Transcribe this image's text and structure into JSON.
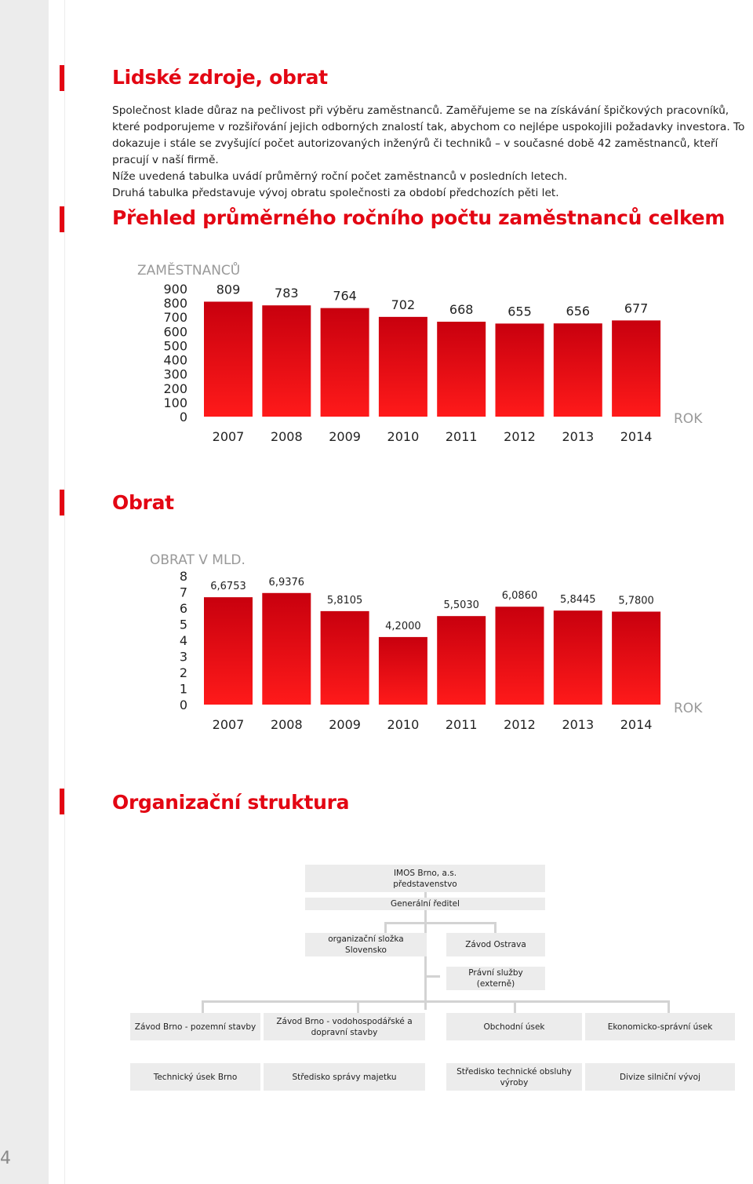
{
  "page_number": "4",
  "sections": {
    "hr_title": "Lidské zdroje, obrat",
    "employees_title": "Přehled průměrného ročního počtu zaměstnanců celkem",
    "turnover_title": "Obrat",
    "org_title": "Organizační struktura"
  },
  "intro": {
    "paragraph1": "Společnost klade důraz na pečlivost při výběru zaměstnanců. Zaměřujeme se na získávání špičkových pracovníků, které podporujeme v rozšiřování jejich odborných znalostí tak, abychom co nejlépe uspokojili požadavky investora. To dokazuje i stále se zvyšující počet autorizovaných inženýrů či techniků – v současné době 42 zaměstnanců, kteří pracují v naší firmě.",
    "paragraph2": "Níže uvedená tabulka uvádí průměrný roční počet zaměstnanců v posledních letech.",
    "paragraph3": "Druhá tabulka představuje vývoj obratu společnosti za období předchozích pěti let."
  },
  "colors": {
    "accent": "#e30613",
    "bar_top": "#c8000e",
    "bar_bottom": "#ff1a1a",
    "gray_box": "#ececec"
  },
  "chart_data": [
    {
      "type": "bar",
      "ylabel": "ZAMĚSTNANCŮ",
      "xlabel": "ROK",
      "categories": [
        "2007",
        "2008",
        "2009",
        "2010",
        "2011",
        "2012",
        "2013",
        "2014"
      ],
      "values": [
        809,
        783,
        764,
        702,
        668,
        655,
        656,
        677
      ],
      "value_labels": [
        "809",
        "783",
        "764",
        "702",
        "668",
        "655",
        "656",
        "677"
      ],
      "yticks": [
        "900",
        "800",
        "700",
        "600",
        "500",
        "400",
        "300",
        "200",
        "100",
        "0"
      ],
      "ylim": [
        0,
        900
      ],
      "grid": false,
      "legend": "none"
    },
    {
      "type": "bar",
      "ylabel": "OBRAT V MLD.",
      "xlabel": "ROK",
      "categories": [
        "2007",
        "2008",
        "2009",
        "2010",
        "2011",
        "2012",
        "2013",
        "2014"
      ],
      "values": [
        6.6753,
        6.9376,
        5.8105,
        4.2,
        5.503,
        6.086,
        5.8445,
        5.78
      ],
      "value_labels": [
        "6,6753",
        "6,9376",
        "5,8105",
        "4,2000",
        "5,5030",
        "6,0860",
        "5,8445",
        "5,7800"
      ],
      "yticks": [
        "8",
        "7",
        "6",
        "5",
        "4",
        "3",
        "2",
        "1",
        "0"
      ],
      "ylim": [
        0,
        8
      ],
      "grid": false,
      "legend": "none"
    }
  ],
  "org": {
    "company": "IMOS Brno, a.s.",
    "board": "představenstvo",
    "ceo": "Generální ředitel",
    "slovakia": "organizační složka Slovensko",
    "ostrava": "Závod Ostrava",
    "legal": "Právní služby (externě)",
    "brno_building": "Závod Brno - pozemní stavby",
    "brno_water": "Závod Brno - vodohospodářské a dopravní stavby",
    "commercial": "Obchodní úsek",
    "economic": "Ekonomicko-správní úsek",
    "technical": "Technický úsek Brno",
    "property": "Středisko správy majetku",
    "tech_service": "Středisko technické obsluhy výroby",
    "road": "Divize silniční vývoj"
  }
}
